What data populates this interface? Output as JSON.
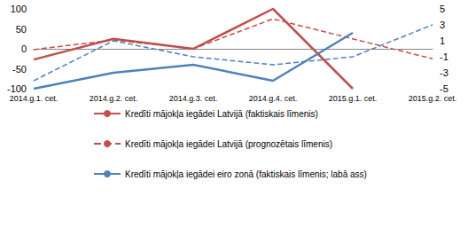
{
  "chart_data": {
    "type": "line",
    "categories": [
      "2014.g.1. cet.",
      "2014.g.2. cet.",
      "2014.g.3. cet.",
      "2014.g.4. cet.",
      "2015.g.1. cet.",
      "2015.g.2. cet."
    ],
    "ylim": [
      -100,
      100
    ],
    "yticks": [
      -100,
      -50,
      0,
      50,
      100
    ],
    "y2lim": [
      -5,
      5
    ],
    "y2ticks": [
      -5,
      -3,
      -1,
      1,
      3,
      5
    ],
    "grid": false,
    "legend": "bottom",
    "series": [
      {
        "name": "Kredīti mājokļa iegādei Latvijā (faktiskais līmenis)",
        "color": "#c0504d",
        "line_style": "solid",
        "values": [
          -27,
          25,
          0,
          100,
          -100,
          null
        ]
      },
      {
        "name": "Kredīti mājokļa iegādei Latvijā (prognozētais līmenis)",
        "color": "#c0504d",
        "line_style": "dashed",
        "values": [
          -2,
          22,
          0,
          75,
          25,
          -25
        ]
      },
      {
        "name": "Kredīti mājokļa iegādei eiro zonā (faktiskais līmenis; labā ass)",
        "color": "#4f81bd",
        "line_style": "solid",
        "axis": "y2",
        "values": [
          -5,
          -3,
          -2,
          -4,
          2,
          null
        ]
      },
      {
        "color": "#4f81bd",
        "line_style": "dashed",
        "axis": "y2",
        "values": [
          -4,
          1,
          -1,
          -2,
          -1,
          3
        ]
      }
    ]
  }
}
